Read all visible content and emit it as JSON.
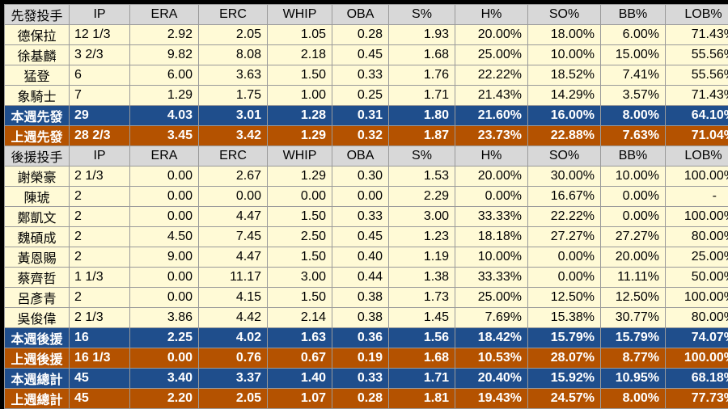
{
  "columns": [
    "IP",
    "ERA",
    "ERC",
    "WHIP",
    "OBA",
    "S%",
    "H%",
    "SO%",
    "BB%",
    "LOB%"
  ],
  "colors": {
    "header": "#d8d8d8",
    "row": "#fffad6",
    "blue": "#1f4e8c",
    "orange": "#b45200"
  },
  "sections": [
    {
      "title": "先發投手",
      "rows": [
        {
          "name": "德保拉",
          "cells": [
            "12 1/3",
            "2.92",
            "2.05",
            "1.05",
            "0.28",
            "1.93",
            "20.00%",
            "18.00%",
            "6.00%",
            "71.43%"
          ]
        },
        {
          "name": "徐基麟",
          "cells": [
            "3 2/3",
            "9.82",
            "8.08",
            "2.18",
            "0.45",
            "1.68",
            "25.00%",
            "10.00%",
            "15.00%",
            "55.56%"
          ]
        },
        {
          "name": "猛登",
          "cells": [
            "6",
            "6.00",
            "3.63",
            "1.50",
            "0.33",
            "1.76",
            "22.22%",
            "18.52%",
            "7.41%",
            "55.56%"
          ]
        },
        {
          "name": "象騎士",
          "cells": [
            "7",
            "1.29",
            "1.75",
            "1.00",
            "0.25",
            "1.71",
            "21.43%",
            "14.29%",
            "3.57%",
            "71.43%"
          ]
        }
      ],
      "totals": [
        {
          "style": "blue",
          "name": "本週先發",
          "cells": [
            "29",
            "4.03",
            "3.01",
            "1.28",
            "0.31",
            "1.80",
            "21.60%",
            "16.00%",
            "8.00%",
            "64.10%"
          ]
        },
        {
          "style": "orange",
          "name": "上週先發",
          "cells": [
            "28 2/3",
            "3.45",
            "3.42",
            "1.29",
            "0.32",
            "1.87",
            "23.73%",
            "22.88%",
            "7.63%",
            "71.04%"
          ]
        }
      ]
    },
    {
      "title": "後援投手",
      "rows": [
        {
          "name": "謝榮豪",
          "cells": [
            "2 1/3",
            "0.00",
            "2.67",
            "1.29",
            "0.30",
            "1.53",
            "20.00%",
            "30.00%",
            "10.00%",
            "100.00%"
          ]
        },
        {
          "name": "陳琥",
          "cells": [
            "2",
            "0.00",
            "0.00",
            "0.00",
            "0.00",
            "2.29",
            "0.00%",
            "16.67%",
            "0.00%",
            "-"
          ]
        },
        {
          "name": "鄭凱文",
          "cells": [
            "2",
            "0.00",
            "4.47",
            "1.50",
            "0.33",
            "3.00",
            "33.33%",
            "22.22%",
            "0.00%",
            "100.00%"
          ]
        },
        {
          "name": "魏碩成",
          "cells": [
            "2",
            "4.50",
            "7.45",
            "2.50",
            "0.45",
            "1.23",
            "18.18%",
            "27.27%",
            "27.27%",
            "80.00%"
          ]
        },
        {
          "name": "黃恩賜",
          "cells": [
            "2",
            "9.00",
            "4.47",
            "1.50",
            "0.40",
            "1.19",
            "10.00%",
            "0.00%",
            "20.00%",
            "25.00%"
          ]
        },
        {
          "name": "蔡齊哲",
          "cells": [
            "1 1/3",
            "0.00",
            "11.17",
            "3.00",
            "0.44",
            "1.38",
            "33.33%",
            "0.00%",
            "11.11%",
            "50.00%"
          ]
        },
        {
          "name": "呂彥青",
          "cells": [
            "2",
            "0.00",
            "4.15",
            "1.50",
            "0.38",
            "1.73",
            "25.00%",
            "12.50%",
            "12.50%",
            "100.00%"
          ]
        },
        {
          "name": "吳俊偉",
          "cells": [
            "2 1/3",
            "3.86",
            "4.42",
            "2.14",
            "0.38",
            "1.45",
            "7.69%",
            "15.38%",
            "30.77%",
            "80.00%"
          ]
        }
      ],
      "totals": [
        {
          "style": "blue",
          "name": "本週後援",
          "cells": [
            "16",
            "2.25",
            "4.02",
            "1.63",
            "0.36",
            "1.56",
            "18.42%",
            "15.79%",
            "15.79%",
            "74.07%"
          ]
        },
        {
          "style": "orange",
          "name": "上週後援",
          "cells": [
            "16 1/3",
            "0.00",
            "0.76",
            "0.67",
            "0.19",
            "1.68",
            "10.53%",
            "28.07%",
            "8.77%",
            "100.00%"
          ]
        },
        {
          "style": "blue",
          "name": "本週總計",
          "cells": [
            "45",
            "3.40",
            "3.37",
            "1.40",
            "0.33",
            "1.71",
            "20.40%",
            "15.92%",
            "10.95%",
            "68.18%"
          ]
        },
        {
          "style": "orange",
          "name": "上週總計",
          "cells": [
            "45",
            "2.20",
            "2.05",
            "1.07",
            "0.28",
            "1.81",
            "19.43%",
            "24.57%",
            "8.00%",
            "77.73%"
          ]
        }
      ]
    }
  ]
}
